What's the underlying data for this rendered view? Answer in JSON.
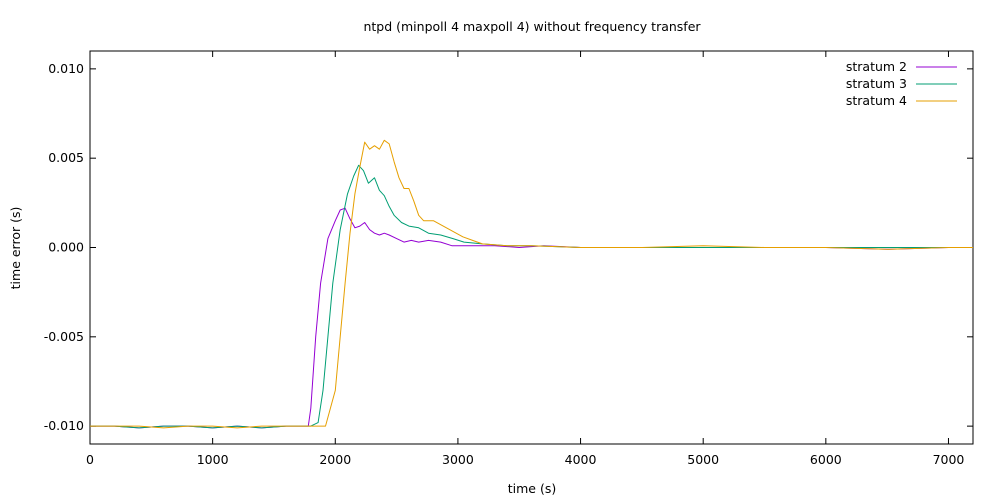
{
  "chart_data": {
    "type": "line",
    "title": "ntpd (minpoll 4 maxpoll 4) without frequency transfer",
    "xlabel": "time (s)",
    "ylabel": "time error (s)",
    "xlim": [
      0,
      7200
    ],
    "ylim": [
      -0.011,
      0.011
    ],
    "xticks": [
      0,
      1000,
      2000,
      3000,
      4000,
      5000,
      6000,
      7000
    ],
    "xtick_labels": [
      "0",
      "1000",
      "2000",
      "3000",
      "4000",
      "5000",
      "6000",
      "7000"
    ],
    "yticks": [
      0.01,
      0.005,
      0.0,
      -0.005,
      -0.01
    ],
    "ytick_labels": [
      "0.010",
      "0.005",
      "0.000",
      "-0.005",
      "-0.010"
    ],
    "grid": false,
    "legend_position": "top-right",
    "series": [
      {
        "name": "stratum 2",
        "color": "#9400d3",
        "points": [
          [
            0,
            -0.01
          ],
          [
            200,
            -0.01
          ],
          [
            400,
            -0.0101
          ],
          [
            600,
            -0.01
          ],
          [
            800,
            -0.01
          ],
          [
            1000,
            -0.0101
          ],
          [
            1200,
            -0.01
          ],
          [
            1400,
            -0.0101
          ],
          [
            1600,
            -0.01
          ],
          [
            1780,
            -0.01
          ],
          [
            1800,
            -0.009
          ],
          [
            1840,
            -0.005
          ],
          [
            1880,
            -0.002
          ],
          [
            1940,
            0.0005
          ],
          [
            2000,
            0.0015
          ],
          [
            2040,
            0.0021
          ],
          [
            2080,
            0.0022
          ],
          [
            2120,
            0.0016
          ],
          [
            2160,
            0.0011
          ],
          [
            2200,
            0.0012
          ],
          [
            2240,
            0.0014
          ],
          [
            2280,
            0.001
          ],
          [
            2320,
            0.0008
          ],
          [
            2360,
            0.0007
          ],
          [
            2400,
            0.0008
          ],
          [
            2440,
            0.0007
          ],
          [
            2500,
            0.0005
          ],
          [
            2560,
            0.0003
          ],
          [
            2620,
            0.0004
          ],
          [
            2680,
            0.0003
          ],
          [
            2760,
            0.0004
          ],
          [
            2860,
            0.0003
          ],
          [
            2950,
            0.0001
          ],
          [
            3050,
            0.0001
          ],
          [
            3150,
            0.0001
          ],
          [
            3300,
            0.0001
          ],
          [
            3500,
            0.0
          ],
          [
            3700,
            0.0001
          ],
          [
            4000,
            0.0
          ],
          [
            4500,
            0.0
          ],
          [
            5000,
            0.0
          ],
          [
            5500,
            0.0
          ],
          [
            6000,
            0.0
          ],
          [
            6500,
            -0.0001
          ],
          [
            7000,
            0.0
          ],
          [
            7200,
            0.0
          ]
        ]
      },
      {
        "name": "stratum 3",
        "color": "#009e73",
        "points": [
          [
            0,
            -0.01
          ],
          [
            200,
            -0.01
          ],
          [
            400,
            -0.0101
          ],
          [
            600,
            -0.01
          ],
          [
            800,
            -0.01
          ],
          [
            1000,
            -0.0101
          ],
          [
            1200,
            -0.01
          ],
          [
            1400,
            -0.0101
          ],
          [
            1600,
            -0.01
          ],
          [
            1800,
            -0.01
          ],
          [
            1860,
            -0.0098
          ],
          [
            1900,
            -0.008
          ],
          [
            1940,
            -0.005
          ],
          [
            1980,
            -0.002
          ],
          [
            2040,
            0.001
          ],
          [
            2100,
            0.003
          ],
          [
            2150,
            0.004
          ],
          [
            2190,
            0.0046
          ],
          [
            2230,
            0.0043
          ],
          [
            2270,
            0.0036
          ],
          [
            2320,
            0.0039
          ],
          [
            2360,
            0.0032
          ],
          [
            2400,
            0.0029
          ],
          [
            2440,
            0.0023
          ],
          [
            2480,
            0.0018
          ],
          [
            2540,
            0.0014
          ],
          [
            2600,
            0.0012
          ],
          [
            2680,
            0.0011
          ],
          [
            2760,
            0.0008
          ],
          [
            2860,
            0.0007
          ],
          [
            2960,
            0.0005
          ],
          [
            3050,
            0.0003
          ],
          [
            3200,
            0.0002
          ],
          [
            3400,
            0.0001
          ],
          [
            3600,
            0.0001
          ],
          [
            4000,
            0.0
          ],
          [
            4500,
            0.0
          ],
          [
            5000,
            0.0
          ],
          [
            5500,
            0.0
          ],
          [
            6000,
            0.0
          ],
          [
            6500,
            0.0
          ],
          [
            7000,
            0.0
          ],
          [
            7200,
            0.0
          ]
        ]
      },
      {
        "name": "stratum 4",
        "color": "#e69f00",
        "points": [
          [
            0,
            -0.01
          ],
          [
            200,
            -0.01
          ],
          [
            400,
            -0.01
          ],
          [
            600,
            -0.0101
          ],
          [
            800,
            -0.01
          ],
          [
            1000,
            -0.01
          ],
          [
            1200,
            -0.0101
          ],
          [
            1400,
            -0.01
          ],
          [
            1600,
            -0.01
          ],
          [
            1800,
            -0.01
          ],
          [
            1920,
            -0.01
          ],
          [
            1960,
            -0.009
          ],
          [
            2000,
            -0.008
          ],
          [
            2040,
            -0.005
          ],
          [
            2080,
            -0.002
          ],
          [
            2120,
            0.0008
          ],
          [
            2160,
            0.003
          ],
          [
            2200,
            0.0045
          ],
          [
            2240,
            0.0059
          ],
          [
            2280,
            0.0055
          ],
          [
            2320,
            0.0057
          ],
          [
            2360,
            0.0055
          ],
          [
            2400,
            0.006
          ],
          [
            2440,
            0.0058
          ],
          [
            2480,
            0.0048
          ],
          [
            2520,
            0.0039
          ],
          [
            2560,
            0.0033
          ],
          [
            2600,
            0.0033
          ],
          [
            2640,
            0.0026
          ],
          [
            2680,
            0.0018
          ],
          [
            2720,
            0.0015
          ],
          [
            2800,
            0.0015
          ],
          [
            2880,
            0.0012
          ],
          [
            2960,
            0.0009
          ],
          [
            3040,
            0.0006
          ],
          [
            3120,
            0.0004
          ],
          [
            3200,
            0.0002
          ],
          [
            3400,
            0.0001
          ],
          [
            3600,
            0.0001
          ],
          [
            4000,
            0.0
          ],
          [
            4500,
            0.0
          ],
          [
            5000,
            0.0001
          ],
          [
            5500,
            0.0
          ],
          [
            6000,
            0.0
          ],
          [
            6500,
            -0.0001
          ],
          [
            7000,
            0.0
          ],
          [
            7200,
            0.0
          ]
        ]
      }
    ]
  }
}
